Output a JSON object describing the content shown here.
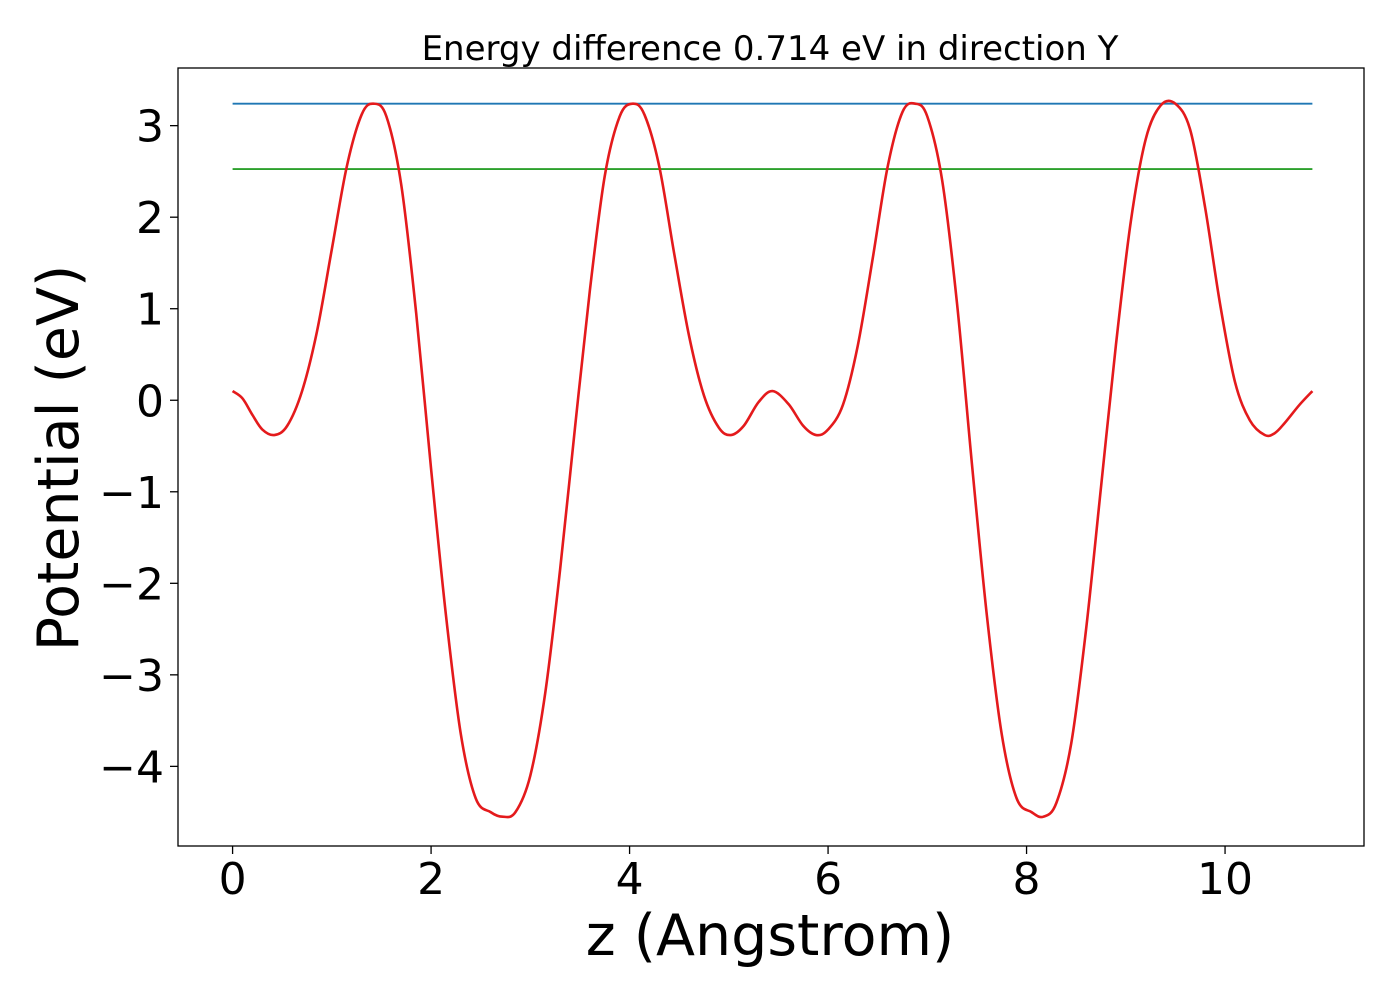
{
  "chart_data": {
    "type": "line",
    "title": "Energy difference 0.714 eV in direction Y",
    "xlabel": "z (Angstrom)",
    "ylabel": "Potential (eV)",
    "xlim": [
      -0.55,
      11.4
    ],
    "ylim": [
      -4.87,
      3.63
    ],
    "xticks": [
      0,
      2,
      4,
      6,
      8,
      10
    ],
    "xtick_labels": [
      "0",
      "2",
      "4",
      "6",
      "8",
      "10"
    ],
    "yticks": [
      3,
      2,
      1,
      0,
      -1,
      -2,
      -3,
      -4
    ],
    "ytick_labels": [
      "3",
      "2",
      "1",
      "0",
      "−1",
      "−2",
      "−3",
      "−4"
    ],
    "grid": false,
    "series": [
      {
        "color": "#1f77b4",
        "style": "hline",
        "x": [
          0,
          10.88
        ],
        "y": [
          3.24,
          3.24
        ]
      },
      {
        "color": "#2ca02c",
        "style": "hline",
        "x": [
          0,
          10.88
        ],
        "y": [
          2.526,
          2.526
        ]
      },
      {
        "color": "#e41a1c",
        "style": "curve",
        "x": [
          0,
          0.1,
          0.2,
          0.3,
          0.42,
          0.55,
          0.7,
          0.85,
          1.0,
          1.15,
          1.3,
          1.42,
          1.55,
          1.7,
          1.85,
          2.0,
          2.15,
          2.3,
          2.45,
          2.6,
          2.72,
          2.85,
          3.0,
          3.15,
          3.3,
          3.45,
          3.6,
          3.75,
          3.9,
          4.03,
          4.15,
          4.3,
          4.45,
          4.6,
          4.75,
          4.9,
          5.02,
          5.15,
          5.3,
          5.44,
          5.6,
          5.75,
          5.88,
          6.0,
          6.15,
          6.3,
          6.45,
          6.6,
          6.75,
          6.88,
          7.0,
          7.15,
          7.3,
          7.45,
          7.6,
          7.75,
          7.9,
          8.05,
          8.17,
          8.3,
          8.45,
          8.6,
          8.75,
          8.9,
          9.05,
          9.2,
          9.35,
          9.5,
          9.65,
          9.8,
          9.95,
          10.1,
          10.25,
          10.4,
          10.5,
          10.6,
          10.75,
          10.88
        ],
        "y": [
          0.1,
          0.02,
          -0.16,
          -0.32,
          -0.38,
          -0.28,
          0.1,
          0.75,
          1.65,
          2.55,
          3.12,
          3.24,
          3.1,
          2.35,
          0.95,
          -0.75,
          -2.35,
          -3.65,
          -4.35,
          -4.5,
          -4.55,
          -4.5,
          -4.1,
          -3.2,
          -1.85,
          -0.3,
          1.2,
          2.45,
          3.1,
          3.24,
          3.12,
          2.55,
          1.6,
          0.7,
          0.05,
          -0.3,
          -0.38,
          -0.28,
          -0.02,
          0.1,
          -0.04,
          -0.28,
          -0.38,
          -0.32,
          -0.05,
          0.6,
          1.55,
          2.55,
          3.15,
          3.24,
          3.1,
          2.4,
          1.05,
          -0.7,
          -2.35,
          -3.65,
          -4.35,
          -4.5,
          -4.55,
          -4.4,
          -3.75,
          -2.5,
          -0.95,
          0.6,
          1.95,
          2.85,
          3.22,
          3.24,
          2.95,
          2.1,
          1.05,
          0.2,
          -0.22,
          -0.38,
          -0.36,
          -0.25,
          -0.05,
          0.1
        ]
      }
    ]
  }
}
